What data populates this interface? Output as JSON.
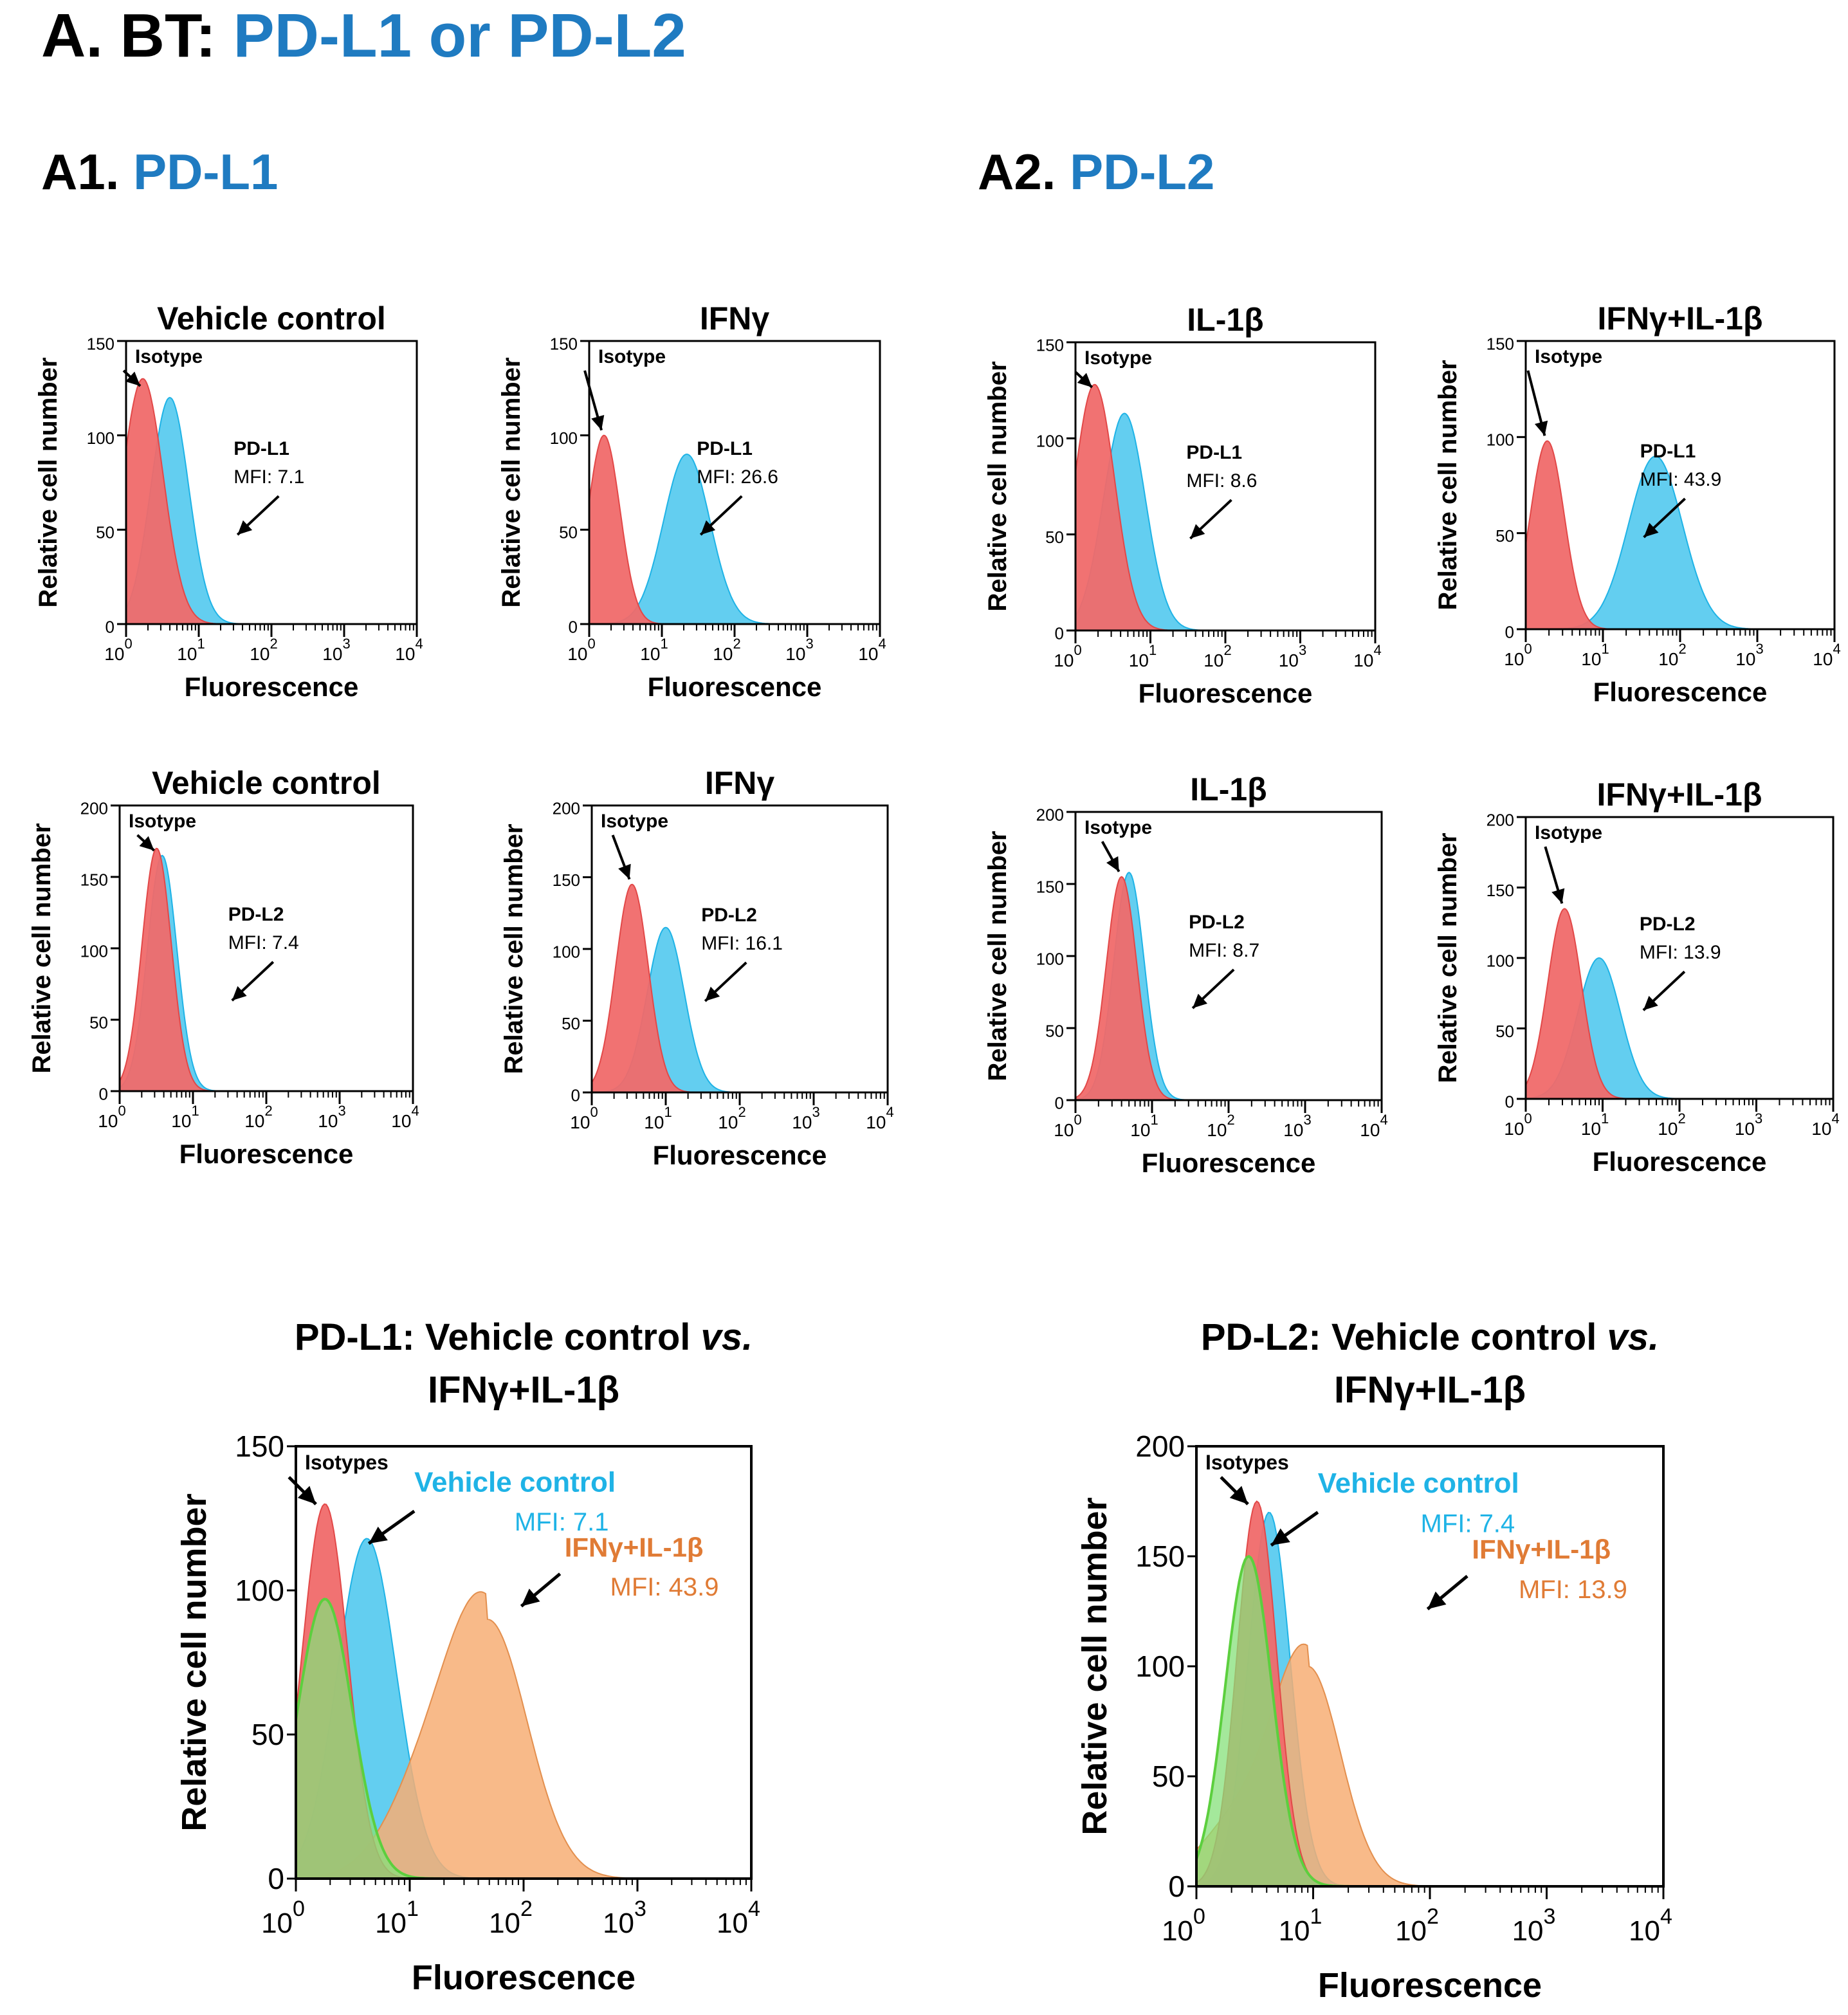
{
  "header": {
    "letter": "A. BT:",
    "title": "PD-L1 or PD-L2"
  },
  "sections": [
    {
      "letter": "A1.",
      "title": "PD-L1"
    },
    {
      "letter": "A2.",
      "title": "PD-L2"
    }
  ],
  "colors": {
    "isotype": "#f06a6a",
    "stain": "#3cc2ec",
    "overlap": "#5f97b5",
    "ifn_il1b": "#f7ae74",
    "iso_combined": "#86e07a",
    "title_blue": "#1f7bc1",
    "orange_text": "#e07b35"
  },
  "chart_data": [
    {
      "type": "area",
      "title": "Vehicle control",
      "xlabel": "Fluorescence",
      "ylabel": "Relative cell number",
      "ylim": [
        0,
        150
      ],
      "yticks": [
        "0",
        "50",
        "100",
        "150"
      ],
      "xscale": "log",
      "xlim": [
        1,
        10000
      ],
      "xticks": [
        "10^0",
        "10^1",
        "10^2",
        "10^3",
        "10^4"
      ],
      "series": [
        {
          "name": "Isotype",
          "role": "isotype",
          "peak_x": 1.7,
          "peak_y": 130,
          "width": 0.28,
          "x": [
            0.7,
            1.0,
            1.5,
            1.7,
            2.2,
            3.0,
            4.5,
            6.0
          ],
          "y": [
            8,
            60,
            120,
            130,
            105,
            55,
            12,
            2
          ]
        },
        {
          "name": "PD-L1",
          "role": "stain",
          "peak_x": 4.0,
          "peak_y": 120,
          "width": 0.26,
          "x": [
            1.4,
            2.0,
            3.0,
            4.0,
            5.5,
            8.0,
            12.0,
            16.0
          ],
          "y": [
            8,
            40,
            100,
            120,
            105,
            55,
            12,
            2
          ]
        }
      ],
      "annotations": {
        "isotype": "Isotype",
        "marker": "PD-L1",
        "mfi": "MFI: 7.1"
      }
    },
    {
      "type": "area",
      "title": "IFNγ",
      "xlabel": "Fluorescence",
      "ylabel": "Relative cell number",
      "ylim": [
        0,
        150
      ],
      "yticks": [
        "0",
        "50",
        "100",
        "150"
      ],
      "xscale": "log",
      "xlim": [
        1,
        10000
      ],
      "xticks": [
        "10^0",
        "10^1",
        "10^2",
        "10^3",
        "10^4"
      ],
      "series": [
        {
          "name": "Isotype",
          "role": "isotype",
          "peak_x": 1.6,
          "peak_y": 100,
          "width": 0.22,
          "x": [
            0.8,
            1.2,
            1.6,
            2.2,
            3.0,
            4.5
          ],
          "y": [
            30,
            80,
            100,
            70,
            25,
            5
          ]
        },
        {
          "name": "PD-L1",
          "role": "stain",
          "peak_x": 22,
          "peak_y": 90,
          "width": 0.32,
          "x": [
            3,
            6,
            12,
            22,
            35,
            55,
            80
          ],
          "y": [
            10,
            30,
            60,
            90,
            75,
            30,
            5
          ]
        }
      ],
      "annotations": {
        "isotype": "Isotype",
        "marker": "PD-L1",
        "mfi": "MFI: 26.6"
      }
    },
    {
      "type": "area",
      "title": "IL-1β",
      "xlabel": "Fluorescence",
      "ylabel": "Relative cell number",
      "ylim": [
        0,
        150
      ],
      "yticks": [
        "0",
        "50",
        "100",
        "150"
      ],
      "xscale": "log",
      "xlim": [
        1,
        10000
      ],
      "xticks": [
        "10^0",
        "10^1",
        "10^2",
        "10^3",
        "10^4"
      ],
      "series": [
        {
          "name": "Isotype",
          "role": "isotype",
          "peak_x": 1.8,
          "peak_y": 128,
          "width": 0.27,
          "x": [
            0.7,
            1.0,
            1.4,
            1.8,
            2.5,
            3.5,
            5.0,
            7.0
          ],
          "y": [
            10,
            60,
            110,
            128,
            105,
            55,
            12,
            2
          ]
        },
        {
          "name": "PD-L1",
          "role": "stain",
          "peak_x": 4.5,
          "peak_y": 113,
          "width": 0.28,
          "x": [
            1.5,
            2.2,
            3.2,
            4.5,
            6.5,
            9.0,
            13.0,
            18.0
          ],
          "y": [
            8,
            40,
            95,
            113,
            100,
            55,
            15,
            2
          ]
        }
      ],
      "annotations": {
        "isotype": "Isotype",
        "marker": "PD-L1",
        "mfi": "MFI: 8.6"
      }
    },
    {
      "type": "area",
      "title": "IFNγ+IL-1β",
      "xlabel": "Fluorescence",
      "ylabel": "Relative cell number",
      "ylim": [
        0,
        150
      ],
      "yticks": [
        "0",
        "50",
        "100",
        "150"
      ],
      "xscale": "log",
      "xlim": [
        1,
        10000
      ],
      "xticks": [
        "10^0",
        "10^1",
        "10^2",
        "10^3",
        "10^4"
      ],
      "series": [
        {
          "name": "Isotype",
          "role": "isotype",
          "peak_x": 1.9,
          "peak_y": 98,
          "width": 0.22,
          "x": [
            0.8,
            1.2,
            1.9,
            2.6,
            3.5,
            5.0
          ],
          "y": [
            25,
            70,
            98,
            70,
            25,
            5
          ]
        },
        {
          "name": "PD-L1",
          "role": "stain",
          "peak_x": 48,
          "peak_y": 90,
          "width": 0.35,
          "x": [
            4,
            8,
            15,
            28,
            48,
            70,
            100,
            150
          ],
          "y": [
            12,
            25,
            40,
            55,
            90,
            70,
            25,
            3
          ]
        }
      ],
      "annotations": {
        "isotype": "Isotype",
        "marker": "PD-L1",
        "mfi": "MFI: 43.9"
      }
    },
    {
      "type": "area",
      "title": "Vehicle control",
      "xlabel": "Fluorescence",
      "ylabel": "Relative cell number",
      "ylim": [
        0,
        200
      ],
      "yticks": [
        "0",
        "50",
        "100",
        "150",
        "200"
      ],
      "xscale": "log",
      "xlim": [
        1,
        10000
      ],
      "xticks": [
        "10^0",
        "10^1",
        "10^2",
        "10^3",
        "10^4"
      ],
      "series": [
        {
          "name": "Isotype",
          "role": "isotype",
          "peak_x": 3.2,
          "peak_y": 170,
          "width": 0.2,
          "x": [
            1.2,
            2.0,
            3.2,
            4.5,
            6.0,
            8.0
          ],
          "y": [
            10,
            80,
            170,
            110,
            30,
            3
          ]
        },
        {
          "name": "PD-L2",
          "role": "stain",
          "peak_x": 3.8,
          "peak_y": 165,
          "width": 0.2,
          "x": [
            1.5,
            2.5,
            3.8,
            5.0,
            7.0,
            10.0
          ],
          "y": [
            10,
            80,
            165,
            120,
            35,
            3
          ]
        }
      ],
      "annotations": {
        "isotype": "Isotype",
        "marker": "PD-L2",
        "mfi": "MFI: 7.4"
      }
    },
    {
      "type": "area",
      "title": "IFNγ",
      "xlabel": "Fluorescence",
      "ylabel": "Relative cell number",
      "ylim": [
        0,
        200
      ],
      "yticks": [
        "0",
        "50",
        "100",
        "150",
        "200"
      ],
      "xscale": "log",
      "xlim": [
        1,
        10000
      ],
      "xticks": [
        "10^0",
        "10^1",
        "10^2",
        "10^3",
        "10^4"
      ],
      "series": [
        {
          "name": "Isotype",
          "role": "isotype",
          "peak_x": 3.5,
          "peak_y": 145,
          "width": 0.22,
          "x": [
            1.3,
            2.3,
            3.5,
            5.0,
            7.0,
            10.0
          ],
          "y": [
            10,
            70,
            145,
            95,
            30,
            3
          ]
        },
        {
          "name": "PD-L2",
          "role": "stain",
          "peak_x": 10,
          "peak_y": 115,
          "width": 0.25,
          "x": [
            3,
            5,
            10,
            15,
            22,
            30
          ],
          "y": [
            10,
            45,
            115,
            90,
            30,
            3
          ]
        }
      ],
      "annotations": {
        "isotype": "Isotype",
        "marker": "PD-L2",
        "mfi": "MFI: 16.1"
      }
    },
    {
      "type": "area",
      "title": "IL-1β",
      "xlabel": "Fluorescence",
      "ylabel": "Relative cell number",
      "ylim": [
        0,
        200
      ],
      "yticks": [
        "0",
        "50",
        "100",
        "150",
        "200"
      ],
      "xscale": "log",
      "xlim": [
        1,
        10000
      ],
      "xticks": [
        "10^0",
        "10^1",
        "10^2",
        "10^3",
        "10^4"
      ],
      "series": [
        {
          "name": "Isotype",
          "role": "isotype",
          "peak_x": 4.0,
          "peak_y": 155,
          "width": 0.2,
          "x": [
            1.5,
            2.5,
            4.0,
            5.5,
            7.5,
            10.0
          ],
          "y": [
            10,
            75,
            155,
            110,
            30,
            3
          ]
        },
        {
          "name": "PD-L2",
          "role": "stain",
          "peak_x": 5.0,
          "peak_y": 158,
          "width": 0.2,
          "x": [
            2.0,
            3.0,
            5.0,
            7.0,
            9.5,
            13.0
          ],
          "y": [
            10,
            80,
            158,
            115,
            35,
            3
          ]
        }
      ],
      "annotations": {
        "isotype": "Isotype",
        "marker": "PD-L2",
        "mfi": "MFI: 8.7"
      }
    },
    {
      "type": "area",
      "title": "IFNγ+IL-1β",
      "xlabel": "Fluorescence",
      "ylabel": "Relative cell number",
      "ylim": [
        0,
        200
      ],
      "yticks": [
        "0",
        "50",
        "100",
        "150",
        "200"
      ],
      "xscale": "log",
      "xlim": [
        1,
        10000
      ],
      "xticks": [
        "10^0",
        "10^1",
        "10^2",
        "10^3",
        "10^4"
      ],
      "series": [
        {
          "name": "Isotype",
          "role": "isotype",
          "peak_x": 3.2,
          "peak_y": 135,
          "width": 0.22,
          "x": [
            1.2,
            2.0,
            3.2,
            4.5,
            6.5,
            9.0
          ],
          "y": [
            10,
            65,
            135,
            90,
            30,
            3
          ]
        },
        {
          "name": "PD-L2",
          "role": "stain",
          "peak_x": 9.0,
          "peak_y": 100,
          "width": 0.28,
          "x": [
            2.5,
            4.5,
            9.0,
            14.0,
            22.0,
            32.0
          ],
          "y": [
            8,
            40,
            100,
            80,
            25,
            3
          ]
        }
      ],
      "annotations": {
        "isotype": "Isotype",
        "marker": "PD-L2",
        "mfi": "MFI: 13.9"
      }
    },
    {
      "type": "area",
      "title": "PD-L1: Vehicle control vs. IFNγ+IL-1β",
      "xlabel": "Fluorescence",
      "ylabel": "Relative cell number",
      "ylim": [
        0,
        150
      ],
      "yticks": [
        "0",
        "50",
        "100",
        "150"
      ],
      "xscale": "log",
      "xlim": [
        1,
        10000
      ],
      "xticks": [
        "10^0",
        "10^1",
        "10^2",
        "10^3",
        "10^4"
      ],
      "series": [
        {
          "name": "Vehicle control",
          "role": "stain",
          "peak_x": 4.2,
          "peak_y": 118,
          "width": 0.26,
          "x": [
            1.5,
            2.2,
            3.2,
            4.2,
            6.0,
            9.0,
            13.0,
            18.0
          ],
          "y": [
            8,
            40,
            95,
            118,
            100,
            50,
            12,
            2
          ]
        },
        {
          "name": "IFNγ+IL-1β",
          "role": "ifn",
          "peak_x": 48,
          "peak_y": 90,
          "width": 0.35,
          "x": [
            4,
            8,
            15,
            28,
            48,
            70,
            100,
            150
          ],
          "y": [
            12,
            25,
            40,
            55,
            90,
            70,
            25,
            3
          ]
        },
        {
          "name": "Isotypes",
          "role": "isotype",
          "peak_x": 1.8,
          "peak_y": 130,
          "width": 0.2,
          "x": [
            0.8,
            1.2,
            1.8,
            2.5,
            3.5,
            5.0
          ],
          "y": [
            20,
            80,
            130,
            90,
            30,
            5
          ]
        },
        {
          "name": "Isotypes",
          "role": "iso_combined",
          "peak_x": 1.8,
          "peak_y": 97,
          "width": 0.24,
          "x": [
            0.8,
            1.2,
            1.8,
            2.6,
            3.6,
            5.0
          ],
          "y": [
            25,
            65,
            97,
            75,
            30,
            5
          ]
        }
      ],
      "annotations": {
        "isotype": "Isotypes",
        "vehicle": "Vehicle control",
        "vehicle_mfi": "MFI: 7.1",
        "combo": "IFNγ+IL-1β",
        "combo_mfi": "MFI: 43.9"
      }
    },
    {
      "type": "area",
      "title": "PD-L2: Vehicle control vs. IFNγ+IL-1β",
      "xlabel": "Fluorescence",
      "ylabel": "Relative cell number",
      "ylim": [
        0,
        200
      ],
      "yticks": [
        "0",
        "50",
        "100",
        "150",
        "200"
      ],
      "xscale": "log",
      "xlim": [
        1,
        10000
      ],
      "xticks": [
        "10^0",
        "10^1",
        "10^2",
        "10^3",
        "10^4"
      ],
      "series": [
        {
          "name": "Vehicle control",
          "role": "stain",
          "peak_x": 4.2,
          "peak_y": 170,
          "width": 0.18,
          "x": [
            1.5,
            2.5,
            4.2,
            6.0,
            8.0,
            11.0
          ],
          "y": [
            10,
            80,
            170,
            115,
            35,
            3
          ]
        },
        {
          "name": "IFNγ+IL-1β",
          "role": "ifn",
          "peak_x": 9.0,
          "peak_y": 100,
          "width": 0.28,
          "x": [
            2.5,
            4.5,
            9.0,
            14.0,
            22.0,
            32.0
          ],
          "y": [
            8,
            40,
            100,
            80,
            25,
            3
          ]
        },
        {
          "name": "Isotypes",
          "role": "isotype",
          "peak_x": 3.3,
          "peak_y": 175,
          "width": 0.17,
          "x": [
            1.3,
            2.2,
            3.3,
            4.5,
            6.0,
            8.0
          ],
          "y": [
            10,
            80,
            175,
            110,
            30,
            3
          ]
        },
        {
          "name": "Isotypes",
          "role": "iso_combined",
          "peak_x": 2.8,
          "peak_y": 150,
          "width": 0.2,
          "x": [
            1.0,
            1.8,
            2.8,
            4.0,
            5.5,
            7.5
          ],
          "y": [
            15,
            70,
            150,
            100,
            30,
            3
          ]
        }
      ],
      "annotations": {
        "isotype": "Isotypes",
        "vehicle": "Vehicle control",
        "vehicle_mfi": "MFI: 7.4",
        "combo": "IFNγ+IL-1β",
        "combo_mfi": "MFI: 13.9"
      }
    }
  ]
}
